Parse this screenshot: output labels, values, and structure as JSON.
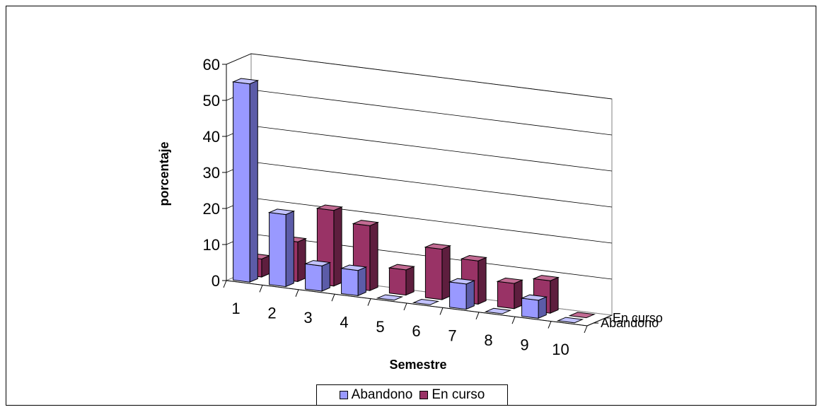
{
  "chart_data": {
    "type": "bar",
    "subtype": "3d-column",
    "categories": [
      "1",
      "2",
      "3",
      "4",
      "5",
      "6",
      "7",
      "8",
      "9",
      "10"
    ],
    "series": [
      {
        "name": "Abandono",
        "color": "#9999ff",
        "side": "#5c5ca8",
        "top": "#c2c2ff",
        "values": [
          55,
          20,
          7,
          7,
          0,
          0,
          7,
          0,
          5,
          0
        ]
      },
      {
        "name": "En curso",
        "color": "#993366",
        "side": "#5e1e3e",
        "top": "#c26b93",
        "values": [
          5,
          11,
          21,
          18,
          7,
          14,
          12,
          7,
          9,
          0
        ]
      }
    ],
    "xlabel": "Semestre",
    "ylabel": "porcentaje",
    "ylim": [
      0,
      60
    ],
    "yticks": [
      "0",
      "10",
      "20",
      "30",
      "40",
      "50",
      "60"
    ],
    "grid": true,
    "legend_position": "bottom"
  }
}
